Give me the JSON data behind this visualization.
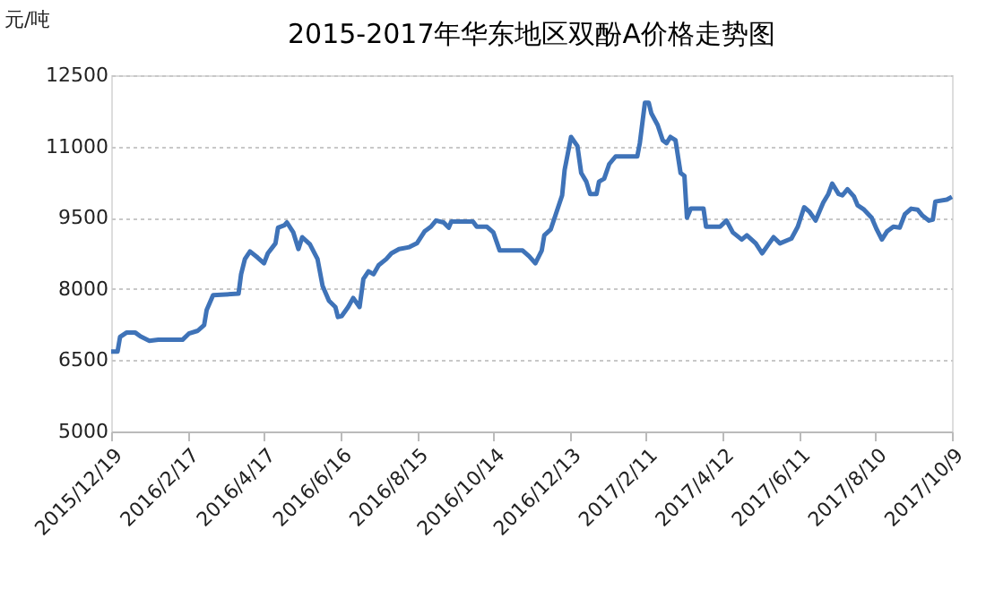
{
  "chart_data": {
    "type": "line",
    "title": "2015-2017年华东地区双酚A价格走势图",
    "ylabel": "元/吨",
    "x": [
      "2015-12-19",
      "2015-12-24",
      "2015-12-26",
      "2015-12-31",
      "2016-01-07",
      "2016-01-11",
      "2016-01-18",
      "2016-01-25",
      "2016-02-13",
      "2016-02-18",
      "2016-02-25",
      "2016-03-01",
      "2016-03-03",
      "2016-03-08",
      "2016-03-28",
      "2016-03-30",
      "2016-04-02",
      "2016-04-06",
      "2016-04-12",
      "2016-04-17",
      "2016-04-20",
      "2016-04-26",
      "2016-04-28",
      "2016-05-03",
      "2016-05-05",
      "2016-05-10",
      "2016-05-14",
      "2016-05-17",
      "2016-05-23",
      "2016-05-29",
      "2016-06-02",
      "2016-06-07",
      "2016-06-12",
      "2016-06-14",
      "2016-06-17",
      "2016-06-22",
      "2016-06-26",
      "2016-07-01",
      "2016-07-04",
      "2016-07-08",
      "2016-07-12",
      "2016-07-16",
      "2016-07-22",
      "2016-07-26",
      "2016-08-01",
      "2016-08-09",
      "2016-08-15",
      "2016-08-21",
      "2016-08-26",
      "2016-08-30",
      "2016-09-05",
      "2016-09-09",
      "2016-09-11",
      "2016-09-28",
      "2016-10-01",
      "2016-10-09",
      "2016-10-14",
      "2016-10-19",
      "2016-11-06",
      "2016-11-11",
      "2016-11-16",
      "2016-11-21",
      "2016-11-23",
      "2016-11-28",
      "2016-12-02",
      "2016-12-07",
      "2016-12-09",
      "2016-12-14",
      "2016-12-19",
      "2016-12-22",
      "2016-12-26",
      "2016-12-29",
      "2017-01-03",
      "2017-01-05",
      "2017-01-09",
      "2017-01-13",
      "2017-01-18",
      "2017-02-04",
      "2017-02-06",
      "2017-02-10",
      "2017-02-13",
      "2017-02-15",
      "2017-02-20",
      "2017-02-24",
      "2017-02-27",
      "2017-03-02",
      "2017-03-06",
      "2017-03-10",
      "2017-03-13",
      "2017-03-15",
      "2017-03-18",
      "2017-03-28",
      "2017-03-30",
      "2017-04-10",
      "2017-04-15",
      "2017-04-20",
      "2017-04-27",
      "2017-05-01",
      "2017-05-08",
      "2017-05-13",
      "2017-05-18",
      "2017-05-22",
      "2017-05-27",
      "2017-06-05",
      "2017-06-10",
      "2017-06-15",
      "2017-06-19",
      "2017-06-24",
      "2017-06-30",
      "2017-07-04",
      "2017-07-07",
      "2017-07-12",
      "2017-07-15",
      "2017-07-19",
      "2017-07-24",
      "2017-07-27",
      "2017-08-01",
      "2017-08-07",
      "2017-08-11",
      "2017-08-15",
      "2017-08-19",
      "2017-08-24",
      "2017-08-29",
      "2017-09-02",
      "2017-09-07",
      "2017-09-12",
      "2017-09-16",
      "2017-09-21",
      "2017-09-24",
      "2017-09-26",
      "2017-10-05",
      "2017-10-09"
    ],
    "series": [
      {
        "color": "#3f73b8",
        "values": [
          6680,
          6680,
          6990,
          7080,
          7080,
          7000,
          6910,
          6930,
          6930,
          7060,
          7120,
          7240,
          7560,
          7870,
          7900,
          8310,
          8630,
          8790,
          8660,
          8540,
          8750,
          8960,
          9290,
          9340,
          9400,
          9190,
          8840,
          9090,
          8940,
          8630,
          8060,
          7750,
          7620,
          7410,
          7430,
          7620,
          7810,
          7620,
          8210,
          8370,
          8310,
          8500,
          8630,
          8750,
          8840,
          8880,
          8960,
          9210,
          9310,
          9440,
          9400,
          9290,
          9420,
          9420,
          9310,
          9310,
          9190,
          8810,
          8810,
          8690,
          8540,
          8810,
          9130,
          9250,
          9570,
          9970,
          10510,
          11200,
          11010,
          10440,
          10260,
          10000,
          10000,
          10260,
          10320,
          10630,
          10790,
          10790,
          11070,
          11920,
          11920,
          11700,
          11450,
          11130,
          11070,
          11200,
          11130,
          10440,
          10380,
          9500,
          9690,
          9690,
          9310,
          9310,
          9440,
          9190,
          9040,
          9130,
          8960,
          8750,
          8940,
          9090,
          8960,
          9060,
          9310,
          9720,
          9630,
          9440,
          9820,
          10000,
          10220,
          10000,
          9970,
          10100,
          9950,
          9760,
          9670,
          9500,
          9250,
          9040,
          9210,
          9310,
          9290,
          9570,
          9690,
          9670,
          9540,
          9440,
          9460,
          9840,
          9880,
          9940
        ]
      }
    ],
    "xlim": [
      "2015-12-19",
      "2017-10-09"
    ],
    "xticks": [
      {
        "value": "2015-12-19",
        "label": "2015/12/19"
      },
      {
        "value": "2016-02-17",
        "label": "2016/2/17"
      },
      {
        "value": "2016-04-17",
        "label": "2016/4/17"
      },
      {
        "value": "2016-06-16",
        "label": "2016/6/16"
      },
      {
        "value": "2016-08-15",
        "label": "2016/8/15"
      },
      {
        "value": "2016-10-14",
        "label": "2016/10/14"
      },
      {
        "value": "2016-12-13",
        "label": "2016/12/13"
      },
      {
        "value": "2017-02-11",
        "label": "2017/2/11"
      },
      {
        "value": "2017-04-12",
        "label": "2017/4/12"
      },
      {
        "value": "2017-06-11",
        "label": "2017/6/11"
      },
      {
        "value": "2017-08-10",
        "label": "2017/8/10"
      },
      {
        "value": "2017-10-09",
        "label": "2017/10/9"
      }
    ],
    "ylim": [
      5000,
      12500
    ],
    "yticks": [
      5000,
      6500,
      8000,
      9500,
      11000,
      12500
    ],
    "grid": "y",
    "legend": false,
    "marker": "none",
    "line_style": "solid"
  }
}
